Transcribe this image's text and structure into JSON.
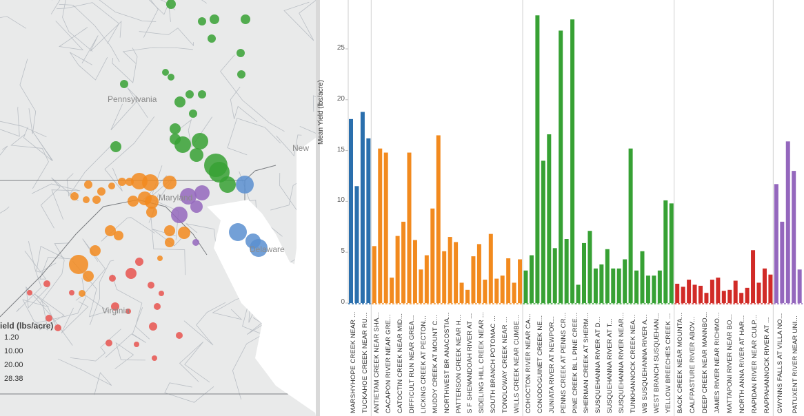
{
  "map": {
    "state_labels": [
      "Pennsylvania",
      "Maryland",
      "Virginia",
      "Delaware",
      "New"
    ],
    "legend": {
      "title": "ield (lbs/acre)",
      "values": [
        "1.20",
        "10.00",
        "20.00",
        "28.38"
      ]
    }
  },
  "chart_data": {
    "type": "bar",
    "ylabel": "Mean Yield (lbs/acre)",
    "yticks": [
      "0",
      "5",
      "10",
      "15",
      "20",
      "25"
    ],
    "ylim": [
      0,
      28.5
    ],
    "grid": false,
    "groups": [
      {
        "color": "#2a6fad",
        "values": [
          18.1,
          11.5,
          18.8,
          16.2
        ],
        "labels": [
          "MARSHYHOPE CREEK NEAR ...",
          "TUCKAHOE CREEK NEAR RU..."
        ]
      },
      {
        "color": "#f28a1e",
        "values": [
          5.6,
          15.2,
          14.8,
          2.5,
          6.6,
          8.0,
          14.8,
          6.2,
          3.3,
          4.7,
          9.3,
          16.5,
          5.1,
          6.5,
          6.0,
          2.0,
          1.3,
          4.6,
          5.8,
          2.3,
          6.8,
          2.4,
          2.7,
          4.4,
          2.0,
          4.3
        ],
        "labels": [
          "ANTIETAM CREEK NEAR SHA...",
          "CACAPON RIVER NEAR GRE...",
          "CATOCTIN CREEK NEAR MID...",
          "DIFFICULT RUN NEAR GREA...",
          "LICKING CREEK AT PECTON...",
          "MUDDY CREEK AT MOUNT C...",
          "NORTHWEST BR ANACOSTIA...",
          "PATTERSON CREEK NEAR H...",
          "S F SHENANDOAH RIVER AT ...",
          "SIDELING HILL CREEK NEAR ...",
          "SOUTH BRANCH POTOMAC ...",
          "TONOLOWAY CREEK NEAR ...",
          "WILLS CREEK NEAR CUMBE..."
        ]
      },
      {
        "color": "#37a134",
        "values": [
          3.2,
          4.7,
          28.3,
          14.0,
          16.6,
          5.4,
          26.8,
          6.3,
          27.9,
          1.8,
          5.9,
          7.1,
          3.4,
          3.8,
          5.3,
          3.4,
          3.4,
          4.3,
          15.2,
          3.2,
          5.1,
          2.7,
          2.7,
          3.2,
          10.1,
          9.8
        ],
        "labels": [
          "COHOCTON RIVER NEAR CA...",
          "CONODOGUINET CREEK NE...",
          "JUNIATA RIVER AT NEWPOR...",
          "PENNS CREEK AT PENNS CR...",
          "PINE CREEK BL L PINE CREE...",
          "SHERMAN CREEK AT SHERM...",
          "SUSQUEHANNA RIVER AT D...",
          "SUSQUEHANNA RIVER AT T...",
          "SUSQUEHANNA RIVER NEAR...",
          "TUNKHANNOCK CREEK NEA...",
          "WB SUSQUEHANNA RIVER A...",
          "WEST BRANCH SUSQUEHAN...",
          "YELLOW BREECHES CREEK ..."
        ]
      },
      {
        "color": "#d12b27",
        "values": [
          1.9,
          1.6,
          2.3,
          1.8,
          1.7,
          1.0,
          2.3,
          2.5,
          1.2,
          1.3,
          2.2,
          1.0,
          1.5,
          5.2,
          2.0,
          3.4,
          2.8
        ],
        "labels": [
          "BACK CREEK NEAR MOUNTA...",
          "CALFPASTURE RIVER ABOV...",
          "DEEP CREEK NEAR MANNBO...",
          "JAMES RIVER NEAR RICHMO...",
          "MATTAPONI RIVER NEAR BO...",
          "NORTH ANNA RIVER AT HAR...",
          "RAPIDAN RIVER NEAR CULP...",
          "RAPPAHANNOCK RIVER AT ..."
        ]
      },
      {
        "color": "#9467bd",
        "values": [
          11.7,
          8.0,
          15.9,
          13.0,
          3.3
        ],
        "labels": [
          "GWYNNS FALLS AT VILLA NO...",
          "PATUXENT RIVER NEAR UNI..."
        ]
      }
    ]
  }
}
